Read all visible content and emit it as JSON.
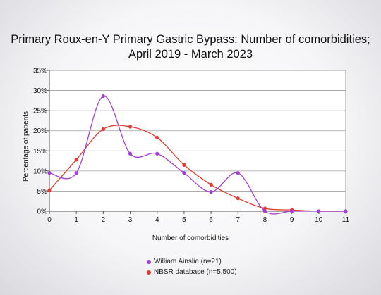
{
  "chart_data": {
    "type": "line",
    "title_lines": [
      "Primary Roux-en-Y Primary Gastric Bypass: Number of comorbidities;",
      "April 2019 - March 2023"
    ],
    "xlabel": "Number of comorbidities",
    "ylabel": "Percentage of patients",
    "x": [
      0,
      1,
      2,
      3,
      4,
      5,
      6,
      7,
      8,
      9,
      10,
      11
    ],
    "x_tick_labels": [
      "0",
      "1",
      "2",
      "3",
      "4",
      "5",
      "6",
      "7",
      "8",
      "9",
      "10",
      "11"
    ],
    "y_ticks": [
      0,
      5,
      10,
      15,
      20,
      25,
      30,
      35
    ],
    "y_tick_labels": [
      "0%",
      "5%",
      "10%",
      "15%",
      "20%",
      "25%",
      "30%",
      "35%"
    ],
    "ylim": [
      0,
      35
    ],
    "xlim": [
      0,
      11
    ],
    "grid": "horizontal",
    "legend_position": "bottom",
    "series": [
      {
        "name": "William Ainslie (n=21)",
        "color": "#a33fd6",
        "values": [
          9.5,
          9.5,
          28.6,
          14.3,
          14.3,
          9.5,
          4.8,
          9.5,
          0,
          0,
          0,
          0
        ]
      },
      {
        "name": "NBSR database (n=5,500)",
        "color": "#e23a2e",
        "values": [
          5.2,
          12.8,
          20.4,
          21.0,
          18.3,
          11.5,
          6.6,
          3.2,
          0.7,
          0.3,
          0.0,
          0.0
        ]
      }
    ]
  }
}
